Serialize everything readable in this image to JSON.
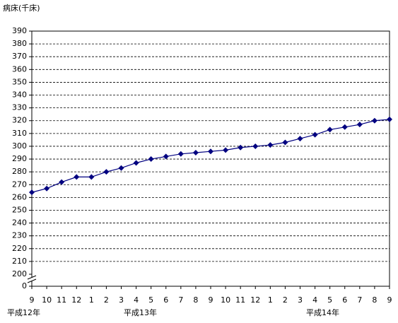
{
  "chart_data": {
    "type": "line",
    "y_label": "病床(千床)",
    "categories": [
      "9",
      "10",
      "11",
      "12",
      "1",
      "2",
      "3",
      "4",
      "5",
      "6",
      "7",
      "8",
      "9",
      "10",
      "11",
      "12",
      "1",
      "2",
      "3",
      "4",
      "5",
      "6",
      "7",
      "8",
      "9"
    ],
    "x_groups": [
      "平成12年",
      "平成13年",
      "平成14年"
    ],
    "series": [
      {
        "color": "#000080",
        "values": [
          264,
          267,
          272,
          276,
          276,
          280,
          283,
          287,
          290,
          292,
          294,
          295,
          296,
          297,
          299,
          300,
          301,
          303,
          306,
          309,
          313,
          315,
          317,
          320,
          321
        ]
      }
    ],
    "ylim": [
      200,
      390
    ],
    "yticks": [
      0,
      200,
      210,
      220,
      230,
      240,
      250,
      260,
      270,
      280,
      290,
      300,
      310,
      320,
      330,
      340,
      350,
      360,
      370,
      380,
      390
    ],
    "axis_break": true,
    "grid": true
  }
}
